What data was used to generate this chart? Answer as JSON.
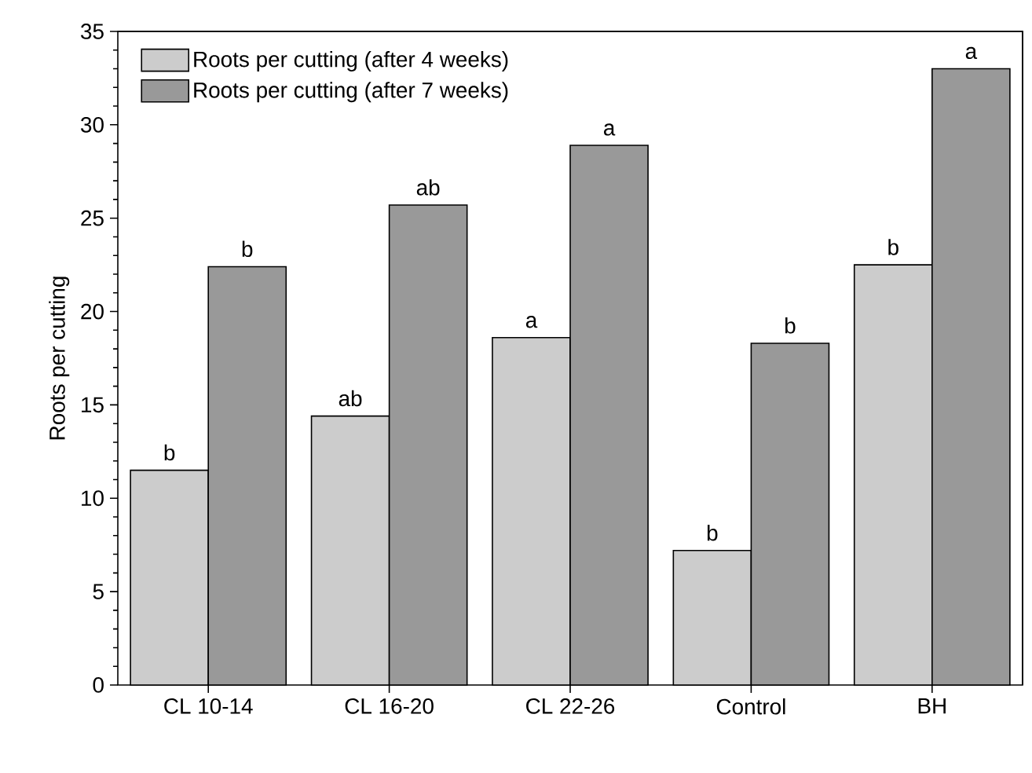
{
  "chart_data": {
    "type": "bar",
    "ylabel": "Roots per cutting",
    "categories": [
      "CL 10-14",
      "CL 16-20",
      "CL 22-26",
      "Control",
      "BH"
    ],
    "series": [
      {
        "name": "Roots per cutting (after 4 weeks)",
        "color": "#cccccc",
        "values": [
          11.5,
          14.4,
          18.6,
          7.2,
          22.5
        ]
      },
      {
        "name": "Roots per cutting (after 7 weeks)",
        "color": "#999999",
        "values": [
          22.4,
          25.7,
          28.9,
          18.3,
          33.0
        ]
      }
    ],
    "ylim": [
      0,
      35
    ],
    "yticks": [
      0,
      5,
      10,
      15,
      20,
      25,
      30,
      35
    ],
    "legend": "top left",
    "grid": false,
    "annotations": [
      {
        "text": "b",
        "x": "CL 10-14",
        "y": 11.5
      },
      {
        "text": "b",
        "x": "CL 10-14",
        "y": 22.4
      },
      {
        "text": "ab",
        "x": "CL 16-20",
        "y": 14.4
      },
      {
        "text": "ab",
        "x": "CL 16-20",
        "y": 25.7
      },
      {
        "text": "a",
        "x": "CL 22-26",
        "y": 18.6
      },
      {
        "text": "a",
        "x": "CL 22-26",
        "y": 28.9
      },
      {
        "text": "b",
        "x": "Control",
        "y": 7.2
      },
      {
        "text": "b",
        "x": "Control",
        "y": 18.3
      },
      {
        "text": "b",
        "x": "BH",
        "y": 22.5
      },
      {
        "text": "a",
        "x": "BH",
        "y": 33.0
      }
    ]
  }
}
